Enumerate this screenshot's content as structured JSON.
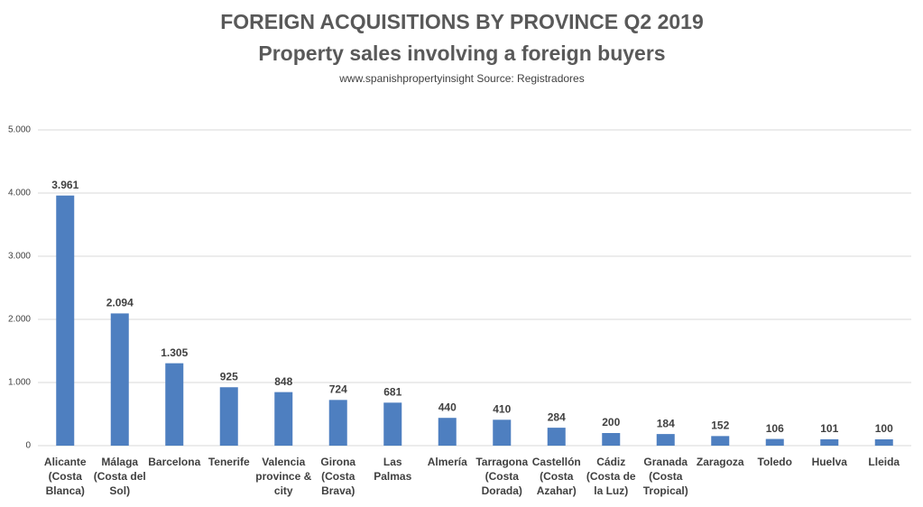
{
  "chart_data": {
    "type": "bar",
    "title": "FOREIGN ACQUISITIONS BY PROVINCE Q2 2019",
    "subtitle": "Property sales involving a foreign buyers",
    "source": "www.spanishpropertyinsight Source: Registradores",
    "categories": [
      "Alicante (Costa Blanca)",
      "Málaga (Costa del Sol)",
      "Barcelona",
      "Tenerife",
      "Valencia province & city",
      "Girona (Costa Brava)",
      "Las Palmas",
      "Almería",
      "Tarragona (Costa Dorada)",
      "Castellón (Costa Azahar)",
      "Cádiz (Costa de la Luz)",
      "Granada (Costa Tropical)",
      "Zaragoza",
      "Toledo",
      "Huelva",
      "Lleida"
    ],
    "values": [
      3961,
      2094,
      1305,
      925,
      848,
      724,
      681,
      440,
      410,
      284,
      200,
      184,
      152,
      106,
      101,
      100
    ],
    "value_labels": [
      "3.961",
      "2.094",
      "1.305",
      "925",
      "848",
      "724",
      "681",
      "440",
      "410",
      "284",
      "200",
      "184",
      "152",
      "106",
      "101",
      "100"
    ],
    "color": "#4e7fc0",
    "ylim": [
      0,
      5000
    ],
    "yticks": [
      0,
      {
        "value": 1000,
        "label": "1.000"
      },
      {
        "value": 2000,
        "label": "2.000"
      },
      {
        "value": 3000,
        "label": "3.000"
      },
      {
        "value": 4000,
        "label": "4.000"
      },
      {
        "value": 5000,
        "label": "5.000"
      }
    ],
    "grid": true
  }
}
